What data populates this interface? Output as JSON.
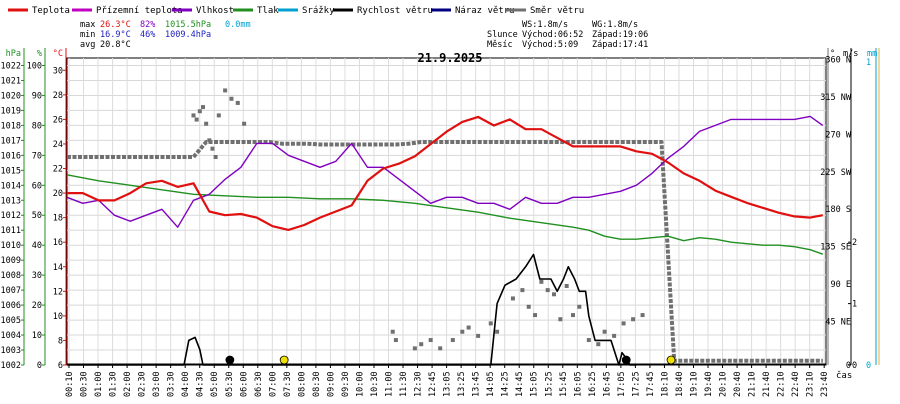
{
  "legend": [
    {
      "label": "Teplota",
      "color": "#e01010"
    },
    {
      "label": "Přízemní teplota",
      "color": "#c000c0"
    },
    {
      "label": "Vlhkost",
      "color": "#8000c0"
    },
    {
      "label": "Tlak",
      "color": "#209020"
    },
    {
      "label": "Srážky",
      "color": "#00a0d0"
    },
    {
      "label": "Rychlost větru",
      "color": "#000000"
    },
    {
      "label": "Náraz větru",
      "color": "#000080"
    },
    {
      "label": "Směr větru",
      "color": "#707070"
    }
  ],
  "stats": {
    "max": {
      "label": "max",
      "temp": "26.3°C",
      "hum": "82%",
      "press": "1015.5hPa",
      "rain": "0.0mm"
    },
    "min": {
      "label": "min",
      "temp": "16.9°C",
      "hum": "46%",
      "press": "1009.4hPa"
    },
    "avg": {
      "label": "avg",
      "temp": "20.8°C"
    }
  },
  "wind_info": {
    "ws": "WS:1.8m/s",
    "wg": "WG:1.8m/s"
  },
  "sun": {
    "label": "Slunce",
    "rise": "Východ:06:52",
    "set": "Západ:19:06"
  },
  "moon": {
    "label": "Měsíc",
    "rise": "Východ:5:09",
    "set": "Západ:17:41"
  },
  "colors": {
    "temp": "#e01010",
    "hum": "#8000c0",
    "press": "#209020",
    "rain": "#00a0d0",
    "wind": "#000000",
    "gust": "#000080",
    "dir": "#707070",
    "sunmark": "#f0e000"
  },
  "chart_data": {
    "type": "line",
    "title": "21.9.2025",
    "xlabel": "čas",
    "x_ticks": [
      "00:10",
      "00:30",
      "01:00",
      "01:30",
      "02:00",
      "02:30",
      "03:00",
      "03:30",
      "04:00",
      "04:30",
      "05:00",
      "05:30",
      "06:00",
      "06:30",
      "07:00",
      "07:30",
      "08:00",
      "08:30",
      "09:00",
      "09:30",
      "10:00",
      "10:30",
      "11:00",
      "11:30",
      "12:30",
      "12:45",
      "13:05",
      "13:25",
      "13:45",
      "14:05",
      "14:25",
      "14:45",
      "15:05",
      "15:25",
      "15:45",
      "16:05",
      "16:25",
      "16:45",
      "17:05",
      "17:25",
      "17:45",
      "18:10",
      "18:40",
      "19:10",
      "19:40",
      "20:10",
      "20:40",
      "21:10",
      "21:40",
      "22:10",
      "22:40",
      "23:10",
      "23:40"
    ],
    "axes": {
      "pressure": {
        "label": "hPa",
        "ticks": [
          "1002",
          "1003",
          "1004",
          "1005",
          "1006",
          "1007",
          "1008",
          "1009",
          "1010",
          "1011",
          "1012",
          "1013",
          "1014",
          "1015",
          "1016",
          "1017",
          "1018",
          "1019",
          "1020",
          "1021",
          "1022"
        ],
        "range": [
          1002,
          1022.5
        ]
      },
      "humidity": {
        "label": "%",
        "ticks": [
          "0",
          "10",
          "20",
          "30",
          "40",
          "50",
          "60",
          "70",
          "80",
          "90",
          "100"
        ],
        "range": [
          0,
          102.5
        ]
      },
      "temperature": {
        "label": "°C",
        "ticks": [
          "6",
          "8",
          "10",
          "12",
          "14",
          "16",
          "18",
          "20",
          "22",
          "24",
          "26",
          "28",
          "30"
        ],
        "range": [
          6,
          31
        ]
      },
      "direction": {
        "label": "°",
        "ticks": [
          "0",
          "45 NE",
          "90 E",
          "135 SE",
          "180 S",
          "225 SW",
          "270 W",
          "315 NW",
          "360 N"
        ],
        "range": [
          0,
          369
        ]
      },
      "wind": {
        "label": "m/s",
        "ticks": [
          "0",
          "1",
          "2"
        ],
        "range": [
          0,
          5
        ]
      },
      "rain": {
        "label": "mm",
        "ticks": [
          "0",
          "1"
        ],
        "range": [
          0,
          1
        ]
      }
    },
    "series": [
      {
        "name": "Teplota",
        "axis": "temperature",
        "x": [
          0,
          0.5,
          1,
          1.5,
          2,
          2.5,
          3,
          3.5,
          4,
          4.5,
          5,
          5.5,
          6,
          6.5,
          7,
          7.5,
          8,
          8.5,
          9,
          9.5,
          10,
          10.5,
          11,
          11.5,
          12,
          12.5,
          13,
          13.5,
          14,
          14.5,
          15,
          15.5,
          16,
          16.5,
          17,
          17.5,
          18,
          18.5,
          19,
          19.5,
          20,
          20.5,
          21,
          21.5,
          22,
          22.5,
          23,
          23.5,
          23.9
        ],
        "y": [
          20,
          20,
          19.4,
          19.4,
          20,
          20.8,
          21,
          20.5,
          20.8,
          18.5,
          18.2,
          18.3,
          18,
          17.3,
          17,
          17.4,
          18,
          18.5,
          19,
          21,
          22,
          22.4,
          23,
          24,
          25,
          25.8,
          26.2,
          25.5,
          26,
          25.2,
          25.2,
          24.5,
          23.8,
          23.8,
          23.8,
          23.8,
          23.4,
          23.2,
          22.5,
          21.6,
          21,
          20.2,
          19.7,
          19.2,
          18.8,
          18.4,
          18.1,
          18,
          18.2
        ]
      },
      {
        "name": "Vlhkost",
        "axis": "humidity",
        "x": [
          0,
          0.5,
          1,
          1.5,
          2,
          2.5,
          3,
          3.5,
          4,
          4.5,
          5,
          5.5,
          6,
          6.5,
          7,
          7.5,
          8,
          8.5,
          9,
          9.5,
          10,
          10.5,
          11,
          11.5,
          12,
          12.5,
          13,
          13.5,
          14,
          14.5,
          15,
          15.5,
          16,
          16.5,
          17,
          17.5,
          18,
          18.5,
          19,
          19.5,
          20,
          20.5,
          21,
          21.5,
          22,
          22.5,
          23,
          23.5,
          23.9
        ],
        "y": [
          56,
          54,
          55,
          50,
          48,
          50,
          52,
          46,
          55,
          57,
          62,
          66,
          74,
          74,
          70,
          68,
          66,
          68,
          74,
          66,
          66,
          62,
          58,
          54,
          56,
          56,
          54,
          54,
          52,
          56,
          54,
          54,
          56,
          56,
          57,
          58,
          60,
          64,
          69,
          73,
          78,
          80,
          82,
          82,
          82,
          82,
          82,
          83,
          80
        ]
      },
      {
        "name": "Tlak",
        "axis": "pressure",
        "x": [
          0,
          1,
          2,
          3,
          4,
          5,
          6,
          7,
          8,
          9,
          10,
          11,
          12,
          13,
          14,
          15,
          16,
          16.5,
          17,
          17.5,
          18,
          18.5,
          19,
          19.5,
          20,
          20.5,
          21,
          21.5,
          22,
          22.5,
          23,
          23.5,
          23.9
        ],
        "y": [
          1014.7,
          1014.3,
          1014,
          1013.7,
          1013.4,
          1013.3,
          1013.2,
          1013.2,
          1013.1,
          1013.1,
          1013,
          1012.8,
          1012.5,
          1012.2,
          1011.8,
          1011.5,
          1011.2,
          1011,
          1010.6,
          1010.4,
          1010.4,
          1010.5,
          1010.6,
          1010.3,
          1010.5,
          1010.4,
          1010.2,
          1010.1,
          1010,
          1010,
          1009.9,
          1009.7,
          1009.4
        ]
      },
      {
        "name": "Rychlost větru",
        "axis": "wind",
        "x": [
          0,
          3.7,
          3.85,
          4.05,
          4.2,
          4.3,
          4.45,
          13.4,
          13.6,
          13.85,
          14.2,
          14.5,
          14.75,
          14.95,
          15.3,
          15.5,
          15.7,
          15.85,
          16.05,
          16.2,
          16.4,
          16.5,
          16.7,
          17.2,
          17.45,
          17.55,
          17.7,
          17.8,
          18
        ],
        "y": [
          0,
          0,
          0.4,
          0.45,
          0.25,
          0,
          0,
          0,
          1,
          1.3,
          1.4,
          1.6,
          1.8,
          1.4,
          1.4,
          1.2,
          1.4,
          1.6,
          1.4,
          1.2,
          1.2,
          0.8,
          0.4,
          0.4,
          0,
          0.2,
          0.1,
          0,
          0
        ]
      },
      {
        "name": "Náraz větru",
        "axis": "wind",
        "x": [
          0,
          3.7,
          3.85,
          4.05,
          4.2,
          4.3,
          4.45,
          13.4,
          13.6,
          13.85,
          14.2,
          14.5,
          14.75,
          14.95,
          15.3,
          15.5,
          15.7,
          15.85,
          16.05,
          16.2,
          16.4,
          16.5,
          16.7,
          17.2,
          17.45,
          17.55,
          17.7,
          17.8,
          18
        ],
        "y": [
          0,
          0,
          0.4,
          0.45,
          0.25,
          0,
          0,
          0,
          1,
          1.3,
          1.4,
          1.6,
          1.8,
          1.4,
          1.4,
          1.2,
          1.4,
          1.6,
          1.4,
          1.2,
          1.2,
          0.8,
          0.4,
          0.4,
          0,
          0.2,
          0.1,
          0,
          0
        ]
      },
      {
        "name": "Směr větru",
        "axis": "direction",
        "x": [
          0,
          0.4,
          0.8,
          1.2,
          1.6,
          2,
          2.4,
          2.8,
          3.2,
          3.6,
          4,
          4.4,
          4.8,
          5.2,
          5.6,
          6,
          6.4,
          6.8,
          7.2,
          7.6,
          8,
          8.4,
          8.8,
          9.2,
          9.6,
          10,
          10.4,
          10.8,
          11.2,
          11.6,
          12,
          12.4,
          12.8,
          13.2,
          13.6,
          14,
          14.4,
          14.8,
          15.2,
          15.6,
          16,
          16.4,
          16.8,
          17.2,
          17.6,
          18,
          18.4,
          18.8,
          19.2,
          19.6,
          20,
          20.4,
          20.8,
          21.2,
          21.6,
          22,
          22.4,
          22.8,
          23.2,
          23.6,
          23.9
        ],
        "y": [
          250,
          250,
          250,
          250,
          250,
          250,
          250,
          250,
          250,
          250,
          250,
          268,
          268,
          268,
          268,
          268,
          268,
          266,
          266,
          266,
          265,
          265,
          265,
          265,
          265,
          265,
          265,
          266,
          268,
          268,
          268,
          268,
          268,
          268,
          268,
          268,
          268,
          268,
          268,
          268,
          268,
          268,
          268,
          268,
          268,
          268,
          268,
          268,
          5,
          5,
          5,
          5,
          5,
          5,
          5,
          5,
          5,
          5,
          5,
          5,
          5
        ]
      }
    ],
    "scatter": [
      {
        "name": "Směr větru (body)",
        "axis": "direction",
        "x": [
          4.0,
          4.1,
          4.2,
          4.3,
          4.4,
          4.5,
          4.6,
          4.7,
          4.8,
          5.0,
          5.2,
          5.4,
          5.6,
          10.3,
          10.4,
          11.0,
          11.2,
          11.5,
          11.8,
          12.2,
          12.5,
          12.7,
          13.0,
          13.4,
          13.6,
          14.1,
          14.4,
          14.6,
          14.8,
          15.0,
          15.2,
          15.4,
          15.6,
          15.8,
          16.0,
          16.2,
          16.5,
          16.8,
          17.0,
          17.3,
          17.6,
          17.9,
          18.2
        ],
        "y": [
          300,
          295,
          305,
          310,
          290,
          270,
          260,
          250,
          300,
          330,
          320,
          315,
          290,
          40,
          30,
          20,
          25,
          30,
          20,
          30,
          40,
          45,
          35,
          50,
          40,
          80,
          90,
          70,
          60,
          100,
          90,
          85,
          55,
          95,
          60,
          70,
          30,
          25,
          40,
          35,
          50,
          55,
          60
        ]
      }
    ],
    "markers": [
      {
        "name": "Východ Měsíce",
        "time": "5:09"
      },
      {
        "name": "Východ Slunce",
        "time": "06:52"
      },
      {
        "name": "Západ Měsíce",
        "time": "17:41"
      },
      {
        "name": "Západ Slunce",
        "time": "19:06"
      }
    ]
  }
}
